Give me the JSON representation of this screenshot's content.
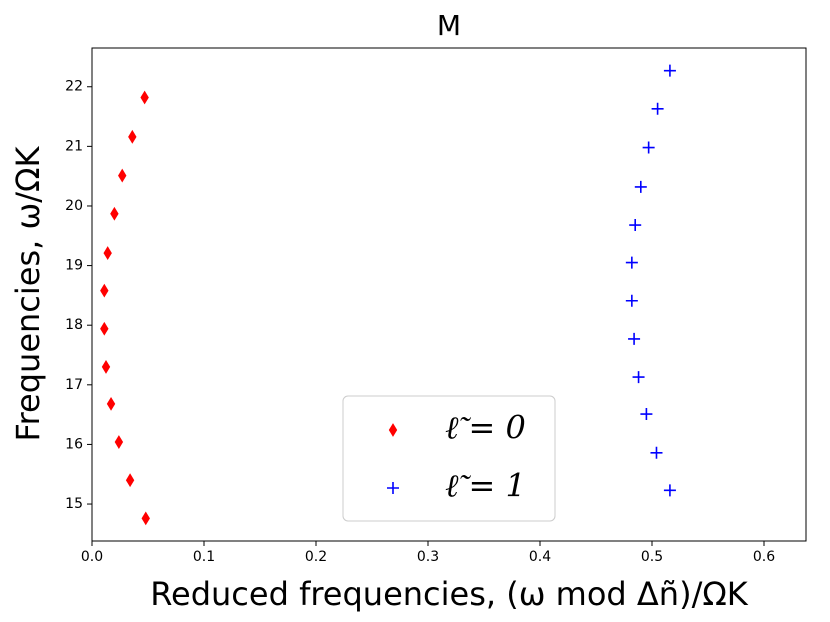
{
  "chart_data": {
    "type": "scatter",
    "title": "M",
    "xlabel": "Reduced frequencies, (ω mod Δñ)/ΩK",
    "ylabel": "Frequencies, ω/ΩK",
    "xlim": [
      0,
      0.6375
    ],
    "ylim": [
      14.38,
      22.65
    ],
    "xticks": [
      {
        "value": 0,
        "label": "0.0"
      },
      0.1,
      0.2,
      0.3,
      0.4,
      0.5,
      0.6
    ],
    "yticks": [
      15,
      16,
      17,
      18,
      19,
      20,
      21,
      22
    ],
    "legend": "lower center",
    "series": [
      {
        "name": "ℓ̃ = 0",
        "color": "#ff0000",
        "marker": "diamond",
        "x": [
          0.048,
          0.034,
          0.024,
          0.017,
          0.0125,
          0.011,
          0.011,
          0.014,
          0.02,
          0.027,
          0.036,
          0.047
        ],
        "values": [
          14.76,
          15.4,
          16.04,
          16.68,
          17.3,
          17.94,
          18.58,
          19.21,
          19.87,
          20.51,
          21.16,
          21.82
        ]
      },
      {
        "name": "ℓ̃ = 1",
        "color": "#0000ff",
        "marker": "plus",
        "x": [
          0.516,
          0.504,
          0.495,
          0.488,
          0.484,
          0.482,
          0.482,
          0.485,
          0.49,
          0.497,
          0.505,
          0.516
        ],
        "values": [
          15.23,
          15.86,
          16.51,
          17.13,
          17.77,
          18.41,
          19.05,
          19.68,
          20.32,
          20.98,
          21.63,
          22.27
        ]
      }
    ]
  }
}
